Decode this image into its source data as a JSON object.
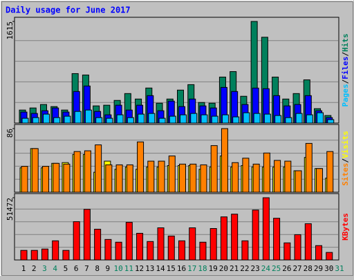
{
  "chart_data": [
    {
      "type": "bar",
      "title": "Daily usage for June 2017",
      "ylim": [
        0,
        1615
      ],
      "yticks": [
        1615
      ],
      "legend_separator": "/",
      "series": [
        {
          "name": "Hits",
          "color": "#00805c",
          "values": [
            207,
            240,
            295,
            262,
            207,
            786,
            764,
            273,
            284,
            360,
            469,
            382,
            557,
            316,
            382,
            524,
            611,
            327,
            316,
            731,
            818,
            426,
            1615,
            1364,
            731,
            382,
            469,
            687,
            229,
            120,
            null
          ]
        },
        {
          "name": "Files",
          "color": "#0000ff",
          "values": [
            175,
            153,
            196,
            240,
            175,
            502,
            589,
            185,
            131,
            284,
            207,
            284,
            436,
            196,
            349,
            262,
            382,
            273,
            240,
            567,
            502,
            295,
            556,
            546,
            436,
            273,
            295,
            436,
            196,
            87,
            null
          ]
        },
        {
          "name": "Pages",
          "color": "#00c0ff",
          "values": [
            76,
            87,
            142,
            87,
            109,
            185,
            207,
            87,
            76,
            131,
            87,
            142,
            153,
            76,
            109,
            131,
            153,
            131,
            109,
            131,
            98,
            164,
            153,
            142,
            120,
            87,
            153,
            131,
            164,
            55,
            null
          ]
        }
      ]
    },
    {
      "type": "bar",
      "ylim": [
        0,
        86
      ],
      "yticks": [
        86
      ],
      "legend_separator": "/",
      "series": [
        {
          "name": "Visits",
          "color": "#ffff00",
          "values": [
            33,
            59,
            33,
            39,
            40,
            51,
            51,
            27,
            42,
            31,
            34,
            31,
            34,
            34,
            36,
            36,
            36,
            31,
            34,
            49,
            34,
            36,
            34,
            34,
            34,
            34,
            29,
            47,
            32,
            19,
            null
          ]
        },
        {
          "name": "Sites",
          "color": "#ff8000",
          "values": [
            35,
            59,
            35,
            39,
            38,
            55,
            56,
            64,
            37,
            37,
            37,
            68,
            42,
            42,
            49,
            38,
            38,
            37,
            63,
            86,
            40,
            46,
            38,
            53,
            43,
            42,
            29,
            66,
            32,
            55,
            null
          ]
        }
      ]
    },
    {
      "type": "bar",
      "ylim": [
        0,
        51472
      ],
      "yticks": [
        51472
      ],
      "categories": [
        "1",
        "2",
        "3",
        "4",
        "5",
        "6",
        "7",
        "8",
        "9",
        "10",
        "11",
        "12",
        "13",
        "14",
        "15",
        "16",
        "17",
        "18",
        "19",
        "20",
        "21",
        "22",
        "23",
        "24",
        "25",
        "26",
        "27",
        "28",
        "29",
        "30",
        "31"
      ],
      "category_colors": [
        "#000000",
        "#000000",
        "#00805c",
        "#00805c",
        "#000000",
        "#000000",
        "#000000",
        "#000000",
        "#000000",
        "#00805c",
        "#00805c",
        "#000000",
        "#000000",
        "#000000",
        "#000000",
        "#000000",
        "#00805c",
        "#00805c",
        "#000000",
        "#000000",
        "#000000",
        "#000000",
        "#000000",
        "#00805c",
        "#00805c",
        "#000000",
        "#000000",
        "#000000",
        "#000000",
        "#000000",
        "#00805c"
      ],
      "series": [
        {
          "name": "KBytes",
          "color": "#ff0000",
          "values": [
            7919,
            7919,
            9050,
            15838,
            7919,
            31676,
            41857,
            25454,
            16969,
            14706,
            31110,
            22060,
            15272,
            26585,
            19797,
            15838,
            26585,
            14706,
            26019,
            35635,
            37898,
            15838,
            41291,
            51472,
            34504,
            14141,
            20928,
            29978,
            11878,
            6222,
            null
          ]
        }
      ]
    }
  ]
}
